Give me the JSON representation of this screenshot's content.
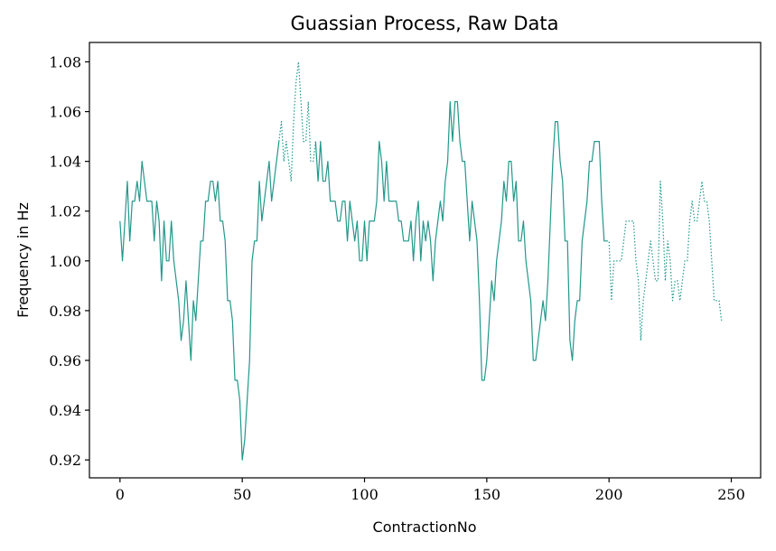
{
  "chart_data": {
    "type": "line",
    "title": "Guassian Process, Raw Data",
    "xlabel": "ContractionNo",
    "ylabel": "Frequency in Hz",
    "xlim": [
      -12.5,
      262
    ],
    "ylim": [
      0.9128,
      1.0878
    ],
    "xticks": [
      0,
      50,
      100,
      150,
      200,
      250
    ],
    "yticks": [
      0.92,
      0.94,
      0.96,
      0.98,
      1.0,
      1.02,
      1.04,
      1.06,
      1.08
    ],
    "ytick_labels": [
      "0.92",
      "0.94",
      "0.96",
      "0.98",
      "1.00",
      "1.02",
      "1.04",
      "1.06",
      "1.08"
    ],
    "grid": false,
    "color": "#21988a",
    "series": [
      {
        "values": [
          [
            0,
            1.016
          ],
          [
            1,
            1.0
          ],
          [
            2,
            1.016
          ],
          [
            3,
            1.032
          ],
          [
            4,
            1.008
          ],
          [
            5,
            1.024
          ],
          [
            6,
            1.024
          ],
          [
            7,
            1.032
          ],
          [
            8,
            1.024
          ],
          [
            9,
            1.04
          ],
          [
            10,
            1.032
          ],
          [
            11,
            1.024
          ],
          [
            12,
            1.024
          ],
          [
            13,
            1.024
          ],
          [
            14,
            1.008
          ],
          [
            15,
            1.024
          ],
          [
            16,
            1.016
          ],
          [
            17,
            0.992
          ],
          [
            18,
            1.016
          ],
          [
            19,
            1.0
          ],
          [
            20,
            1.0
          ],
          [
            21,
            1.016
          ],
          [
            22,
            1.0
          ],
          [
            23,
            0.992
          ],
          [
            24,
            0.984
          ],
          [
            25,
            0.968
          ],
          [
            26,
            0.976
          ],
          [
            27,
            0.992
          ],
          [
            28,
            0.976
          ],
          [
            29,
            0.96
          ],
          [
            30,
            0.984
          ],
          [
            31,
            0.976
          ],
          [
            32,
            0.992
          ],
          [
            33,
            1.008
          ],
          [
            34,
            1.008
          ],
          [
            35,
            1.024
          ],
          [
            36,
            1.024
          ],
          [
            37,
            1.032
          ],
          [
            38,
            1.032
          ],
          [
            39,
            1.024
          ],
          [
            40,
            1.032
          ],
          [
            41,
            1.016
          ],
          [
            42,
            1.016
          ],
          [
            43,
            1.008
          ],
          [
            44,
            0.984
          ],
          [
            45,
            0.984
          ],
          [
            46,
            0.976
          ],
          [
            47,
            0.952
          ],
          [
            48,
            0.952
          ],
          [
            49,
            0.944
          ],
          [
            50,
            0.92
          ],
          [
            51,
            0.928
          ],
          [
            52,
            0.944
          ],
          [
            53,
            0.96
          ],
          [
            54,
            1.0
          ],
          [
            55,
            1.008
          ],
          [
            56,
            1.008
          ],
          [
            57,
            1.032
          ],
          [
            58,
            1.016
          ],
          [
            59,
            1.024
          ],
          [
            60,
            1.032
          ],
          [
            61,
            1.04
          ],
          [
            62,
            1.024
          ],
          [
            63,
            1.032
          ],
          [
            64,
            1.04
          ],
          [
            65,
            1.048
          ],
          [
            66,
            1.056
          ],
          [
            67,
            1.04
          ],
          [
            68,
            1.048
          ],
          [
            69,
            1.04
          ],
          [
            70,
            1.032
          ],
          [
            71,
            1.056
          ],
          [
            72,
            1.072
          ],
          [
            73,
            1.08
          ],
          [
            74,
            1.064
          ],
          [
            75,
            1.048
          ],
          [
            76,
            1.048
          ],
          [
            77,
            1.064
          ],
          [
            78,
            1.04
          ],
          [
            79,
            1.04
          ],
          [
            80,
            1.048
          ],
          [
            81,
            1.032
          ],
          [
            82,
            1.048
          ],
          [
            83,
            1.032
          ],
          [
            84,
            1.032
          ],
          [
            85,
            1.04
          ],
          [
            86,
            1.024
          ],
          [
            87,
            1.024
          ],
          [
            88,
            1.024
          ],
          [
            89,
            1.016
          ],
          [
            90,
            1.016
          ],
          [
            91,
            1.024
          ],
          [
            92,
            1.024
          ],
          [
            93,
            1.008
          ],
          [
            94,
            1.024
          ],
          [
            95,
            1.016
          ],
          [
            96,
            1.008
          ],
          [
            97,
            1.016
          ],
          [
            98,
            1.0
          ],
          [
            99,
            1.0
          ],
          [
            100,
            1.016
          ],
          [
            101,
            1.0
          ],
          [
            102,
            1.016
          ],
          [
            103,
            1.016
          ],
          [
            104,
            1.016
          ],
          [
            105,
            1.024
          ],
          [
            106,
            1.048
          ],
          [
            107,
            1.04
          ],
          [
            108,
            1.024
          ],
          [
            109,
            1.04
          ],
          [
            110,
            1.024
          ],
          [
            111,
            1.024
          ],
          [
            112,
            1.024
          ],
          [
            113,
            1.024
          ],
          [
            114,
            1.016
          ],
          [
            115,
            1.016
          ],
          [
            116,
            1.008
          ],
          [
            117,
            1.008
          ],
          [
            118,
            1.008
          ],
          [
            119,
            1.016
          ],
          [
            120,
            1.0
          ],
          [
            121,
            1.016
          ],
          [
            122,
            1.024
          ],
          [
            123,
            1.0
          ],
          [
            124,
            1.016
          ],
          [
            125,
            1.008
          ],
          [
            126,
            1.016
          ],
          [
            127,
            1.008
          ],
          [
            128,
            0.992
          ],
          [
            129,
            1.008
          ],
          [
            130,
            1.016
          ],
          [
            131,
            1.024
          ],
          [
            132,
            1.016
          ],
          [
            133,
            1.032
          ],
          [
            134,
            1.04
          ],
          [
            135,
            1.064
          ],
          [
            136,
            1.048
          ],
          [
            137,
            1.064
          ],
          [
            138,
            1.064
          ],
          [
            139,
            1.048
          ],
          [
            140,
            1.04
          ],
          [
            141,
            1.04
          ],
          [
            142,
            1.024
          ],
          [
            143,
            1.008
          ],
          [
            144,
            1.024
          ],
          [
            145,
            1.016
          ],
          [
            146,
            1.008
          ],
          [
            147,
            0.984
          ],
          [
            148,
            0.952
          ],
          [
            149,
            0.952
          ],
          [
            150,
            0.96
          ],
          [
            151,
            0.976
          ],
          [
            152,
            0.992
          ],
          [
            153,
            0.984
          ],
          [
            154,
            1.0
          ],
          [
            155,
            1.008
          ],
          [
            156,
            1.016
          ],
          [
            157,
            1.032
          ],
          [
            158,
            1.024
          ],
          [
            159,
            1.04
          ],
          [
            160,
            1.04
          ],
          [
            161,
            1.024
          ],
          [
            162,
            1.032
          ],
          [
            163,
            1.008
          ],
          [
            164,
            1.008
          ],
          [
            165,
            1.016
          ],
          [
            166,
            1.0
          ],
          [
            167,
            0.992
          ],
          [
            168,
            0.984
          ],
          [
            169,
            0.96
          ],
          [
            170,
            0.96
          ],
          [
            171,
            0.968
          ],
          [
            172,
            0.976
          ],
          [
            173,
            0.984
          ],
          [
            174,
            0.976
          ],
          [
            175,
            0.992
          ],
          [
            176,
            1.016
          ],
          [
            177,
            1.04
          ],
          [
            178,
            1.056
          ],
          [
            179,
            1.056
          ],
          [
            180,
            1.04
          ],
          [
            181,
            1.032
          ],
          [
            182,
            1.008
          ],
          [
            183,
            1.008
          ],
          [
            184,
            0.968
          ],
          [
            185,
            0.96
          ],
          [
            186,
            0.976
          ],
          [
            187,
            0.984
          ],
          [
            188,
            0.984
          ],
          [
            189,
            1.008
          ],
          [
            190,
            1.016
          ],
          [
            191,
            1.024
          ],
          [
            192,
            1.04
          ],
          [
            193,
            1.04
          ],
          [
            194,
            1.048
          ],
          [
            195,
            1.048
          ],
          [
            196,
            1.048
          ],
          [
            197,
            1.024
          ],
          [
            198,
            1.008
          ],
          [
            199,
            1.008
          ],
          [
            200,
            1.008
          ],
          [
            201,
            0.984
          ],
          [
            202,
            1.0
          ],
          [
            203,
            1.0
          ],
          [
            204,
            1.0
          ],
          [
            205,
            1.0
          ],
          [
            206,
            1.008
          ],
          [
            207,
            1.016
          ],
          [
            208,
            1.016
          ],
          [
            209,
            1.016
          ],
          [
            210,
            1.016
          ],
          [
            211,
            1.0
          ],
          [
            212,
            0.992
          ],
          [
            213,
            0.968
          ],
          [
            214,
            0.984
          ],
          [
            215,
            0.992
          ],
          [
            216,
            1.0
          ],
          [
            217,
            1.008
          ],
          [
            218,
            1.0
          ],
          [
            219,
            0.992
          ],
          [
            220,
            0.992
          ],
          [
            221,
            1.032
          ],
          [
            222,
            1.016
          ],
          [
            223,
            0.992
          ],
          [
            224,
            1.008
          ],
          [
            225,
            1.0
          ],
          [
            226,
            0.984
          ],
          [
            227,
            0.992
          ],
          [
            228,
            0.992
          ],
          [
            229,
            0.984
          ],
          [
            230,
            0.992
          ],
          [
            231,
            1.0
          ],
          [
            232,
            1.0
          ],
          [
            233,
            1.016
          ],
          [
            234,
            1.024
          ],
          [
            235,
            1.016
          ],
          [
            236,
            1.016
          ],
          [
            237,
            1.024
          ],
          [
            238,
            1.032
          ],
          [
            239,
            1.024
          ],
          [
            240,
            1.024
          ],
          [
            241,
            1.016
          ],
          [
            242,
            1.0
          ],
          [
            243,
            0.984
          ],
          [
            244,
            0.984
          ],
          [
            245,
            0.984
          ],
          [
            246,
            0.976
          ]
        ],
        "style_ranges": [
          {
            "from": 0,
            "to": 65,
            "style": "solid"
          },
          {
            "from": 65,
            "to": 80,
            "style": "dotted"
          },
          {
            "from": 80,
            "to": 199,
            "style": "solid"
          },
          {
            "from": 199,
            "to": 246,
            "style": "dotted"
          }
        ]
      }
    ]
  }
}
